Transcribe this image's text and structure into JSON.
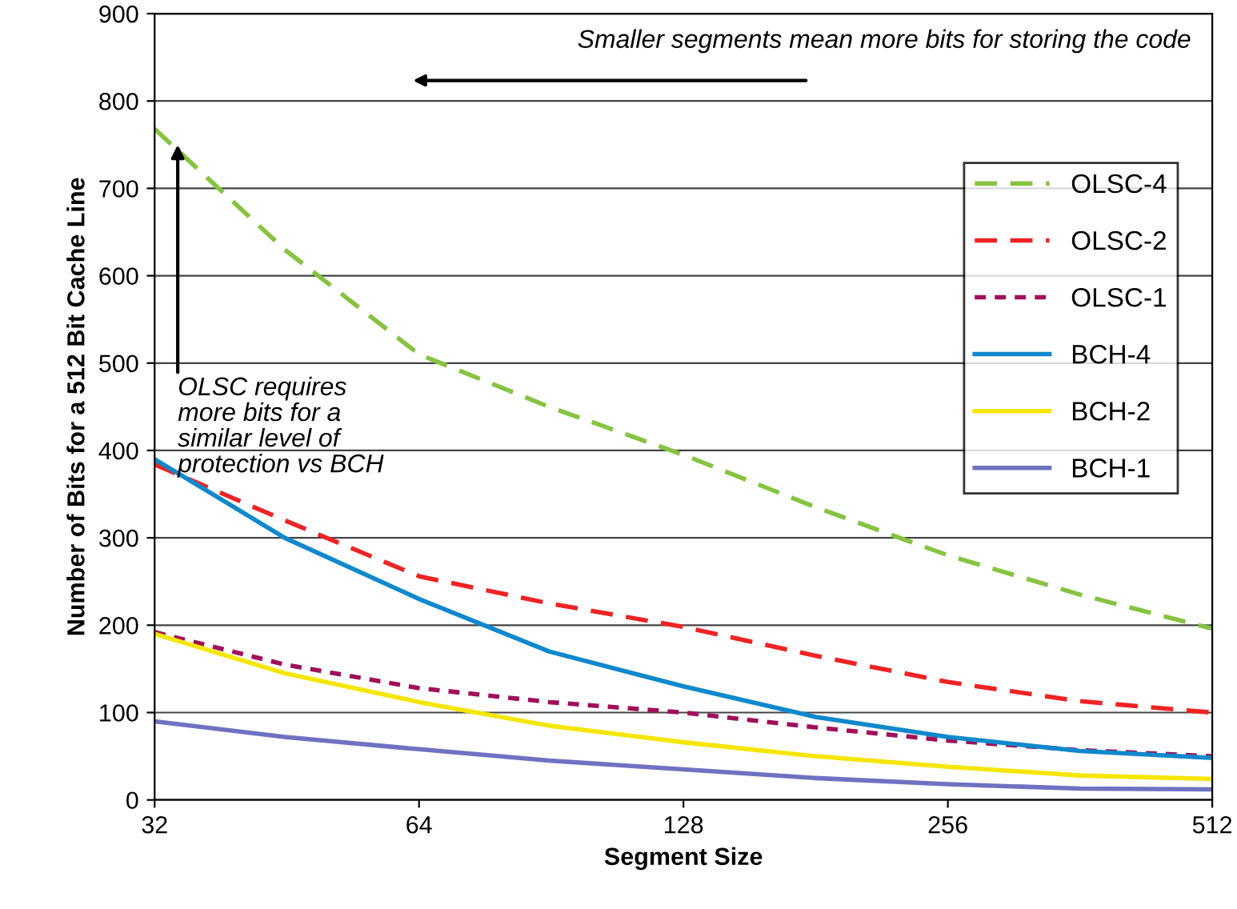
{
  "chart_data": {
    "type": "line",
    "xlabel": "Segment Size",
    "ylabel": "Number of Bits for a 512 Bit Cache Line",
    "x": [
      32,
      45,
      64,
      90,
      128,
      181,
      256,
      362,
      512
    ],
    "log": "x",
    "xlim": [
      32,
      512
    ],
    "xticks": [
      32,
      64,
      128,
      256,
      512
    ],
    "ylim": [
      0,
      900
    ],
    "yticks": [
      0,
      100,
      200,
      300,
      400,
      500,
      600,
      700,
      800,
      900
    ],
    "grid": "y",
    "legend": "right",
    "series": [
      {
        "name": "OLSC-4",
        "color": "#86c341",
        "line_style": "dashed",
        "values": [
          768,
          630,
          510,
          450,
          395,
          335,
          280,
          235,
          196
        ]
      },
      {
        "name": "OLSC-2",
        "color": "#ee2424",
        "line_style": "dashed",
        "values": [
          384,
          320,
          256,
          225,
          198,
          165,
          135,
          113,
          100
        ]
      },
      {
        "name": "OLSC-1",
        "color": "#a0105a",
        "line_style": "dotted",
        "values": [
          192,
          155,
          128,
          112,
          100,
          83,
          68,
          57,
          50
        ]
      },
      {
        "name": "BCH-4",
        "color": "#0f88cc",
        "line_style": "solid",
        "values": [
          390,
          300,
          230,
          170,
          130,
          95,
          72,
          56,
          48
        ]
      },
      {
        "name": "BCH-2",
        "color": "#f5e600",
        "line_style": "solid",
        "values": [
          190,
          145,
          112,
          85,
          66,
          50,
          38,
          28,
          24
        ]
      },
      {
        "name": "BCH-1",
        "color": "#6e72c0",
        "line_style": "solid",
        "values": [
          90,
          72,
          58,
          45,
          35,
          25,
          18,
          13,
          12
        ]
      }
    ],
    "annotations": [
      "Smaller segments mean more bits for storing the code",
      {
        "text": "OLSC requires\nmore bits for a\nsimilar level of\nprotection vs BCH",
        "x": 34,
        "y": 750
      }
    ]
  }
}
